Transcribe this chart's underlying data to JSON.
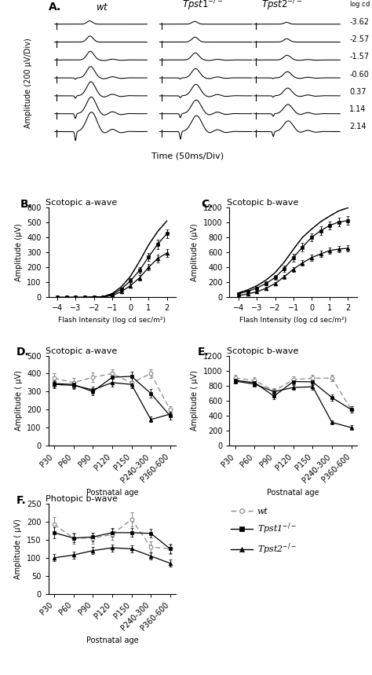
{
  "panel_A": {
    "intensity_labels": [
      "-3.62",
      "-2.57",
      "-1.57",
      "-0.60",
      "0.37",
      "1.14",
      "2.14"
    ],
    "xlabel": "Time (50ms/Div)",
    "ylabel": "Amplitude (200 μV/Div)"
  },
  "panel_B": {
    "label": "B.",
    "title": "Scotopic a-wave",
    "xlabel": "Flash Intensity (log cd sec/m²)",
    "ylabel": "Amplitude (μV)",
    "ylim": [
      0,
      600
    ],
    "xlim": [
      -4.5,
      2.5
    ],
    "xticks": [
      -4,
      -3,
      -2,
      -1,
      0,
      1,
      2
    ],
    "wt_x": [
      -4,
      -3.5,
      -3,
      -2.5,
      -2,
      -1.5,
      -1,
      -0.5,
      0,
      0.5,
      1,
      1.5,
      2
    ],
    "wt_y": [
      0,
      0,
      0,
      0,
      2,
      5,
      25,
      70,
      140,
      240,
      350,
      440,
      510
    ],
    "tpst1_x": [
      -4,
      -3.5,
      -3,
      -2.5,
      -2,
      -1.5,
      -1,
      -0.5,
      0,
      0.5,
      1,
      1.5,
      2
    ],
    "tpst1_y": [
      0,
      0,
      0,
      0,
      2,
      4,
      18,
      55,
      110,
      180,
      270,
      355,
      425
    ],
    "tpst1_err": [
      0,
      0,
      0,
      0,
      1,
      2,
      8,
      12,
      18,
      22,
      28,
      32,
      30
    ],
    "tpst2_x": [
      -4,
      -3.5,
      -3,
      -2.5,
      -2,
      -1.5,
      -1,
      -0.5,
      0,
      0.5,
      1,
      1.5,
      2
    ],
    "tpst2_y": [
      0,
      0,
      0,
      0,
      1,
      3,
      12,
      38,
      78,
      130,
      200,
      260,
      295
    ],
    "tpst2_err": [
      0,
      0,
      0,
      0,
      1,
      2,
      6,
      10,
      14,
      18,
      22,
      25,
      28
    ]
  },
  "panel_C": {
    "label": "C.",
    "title": "Scotopic b-wave",
    "xlabel": "Flash Intensity (log cd sec/m²)",
    "ylabel": "Amplitude (μV)",
    "ylim": [
      0,
      1200
    ],
    "xlim": [
      -4.5,
      2.5
    ],
    "xticks": [
      -4,
      -3,
      -2,
      -1,
      0,
      1,
      2
    ],
    "wt_x": [
      -4,
      -3.5,
      -3,
      -2.5,
      -2,
      -1.5,
      -1,
      -0.5,
      0,
      0.5,
      1,
      1.5,
      2
    ],
    "wt_y": [
      60,
      100,
      155,
      230,
      330,
      470,
      640,
      800,
      910,
      1010,
      1085,
      1155,
      1195
    ],
    "tpst1_x": [
      -4,
      -3.5,
      -3,
      -2.5,
      -2,
      -1.5,
      -1,
      -0.5,
      0,
      0.5,
      1,
      1.5,
      2
    ],
    "tpst1_y": [
      50,
      80,
      125,
      185,
      265,
      385,
      530,
      670,
      800,
      890,
      960,
      1005,
      1025
    ],
    "tpst1_err": [
      10,
      15,
      20,
      25,
      30,
      40,
      50,
      55,
      55,
      55,
      55,
      55,
      55
    ],
    "tpst2_x": [
      -4,
      -3.5,
      -3,
      -2.5,
      -2,
      -1.5,
      -1,
      -0.5,
      0,
      0.5,
      1,
      1.5,
      2
    ],
    "tpst2_y": [
      25,
      45,
      75,
      120,
      185,
      275,
      375,
      460,
      530,
      580,
      625,
      645,
      655
    ],
    "tpst2_err": [
      8,
      10,
      14,
      18,
      22,
      28,
      32,
      38,
      40,
      42,
      42,
      42,
      42
    ]
  },
  "panel_D": {
    "label": "D.",
    "title": "Scotopic a-wave",
    "xlabel": "Postnatal age",
    "ylabel": "Amplitude ( μV)",
    "ylim": [
      0,
      500
    ],
    "yticks": [
      0,
      100,
      200,
      300,
      400,
      500
    ],
    "xtick_labels": [
      "P30",
      "P60",
      "P90",
      "P120",
      "P150",
      "P240-300",
      "P360-600"
    ],
    "wt_y": [
      375,
      350,
      380,
      400,
      350,
      400,
      200
    ],
    "wt_err": [
      25,
      25,
      25,
      25,
      25,
      25,
      20
    ],
    "tpst1_y": [
      345,
      340,
      300,
      380,
      385,
      290,
      165
    ],
    "tpst1_err": [
      20,
      20,
      20,
      25,
      25,
      25,
      20
    ],
    "tpst2_y": [
      340,
      335,
      310,
      350,
      340,
      145,
      175
    ],
    "tpst2_err": [
      20,
      20,
      20,
      20,
      20,
      15,
      15
    ]
  },
  "panel_E": {
    "label": "E.",
    "title": "Scotopic b-wave",
    "xlabel": "Postnatal age",
    "ylabel": "Amplitude ( μV)",
    "ylim": [
      0,
      1200
    ],
    "yticks": [
      0,
      200,
      400,
      600,
      800,
      1000,
      1200
    ],
    "xtick_labels": [
      "P30",
      "P60",
      "P90",
      "P120",
      "P150",
      "P240-300",
      "P360-600"
    ],
    "wt_y": [
      900,
      870,
      730,
      880,
      900,
      900,
      480
    ],
    "wt_err": [
      40,
      40,
      40,
      40,
      40,
      40,
      40
    ],
    "tpst1_y": [
      870,
      840,
      660,
      855,
      850,
      640,
      480
    ],
    "tpst1_err": [
      40,
      40,
      40,
      40,
      40,
      40,
      40
    ],
    "tpst2_y": [
      860,
      820,
      720,
      775,
      785,
      310,
      240
    ],
    "tpst2_err": [
      35,
      35,
      35,
      35,
      35,
      30,
      30
    ]
  },
  "panel_F": {
    "label": "F.",
    "title": "Photopic b-wave",
    "xlabel": "Postnatal age",
    "ylabel": "Amplitude ( μV)",
    "ylim": [
      0,
      250
    ],
    "yticks": [
      0,
      50,
      100,
      150,
      200,
      250
    ],
    "xtick_labels": [
      "P30",
      "P60",
      "P90",
      "P120",
      "P150",
      "P240-300",
      "P360-600"
    ],
    "wt_y": [
      193,
      155,
      155,
      165,
      207,
      130,
      125
    ],
    "wt_err": [
      20,
      15,
      15,
      15,
      20,
      15,
      15
    ],
    "tpst1_y": [
      170,
      155,
      158,
      170,
      170,
      168,
      125
    ],
    "tpst1_err": [
      15,
      12,
      12,
      12,
      12,
      12,
      12
    ],
    "tpst2_y": [
      100,
      108,
      120,
      128,
      125,
      105,
      85
    ],
    "tpst2_err": [
      10,
      10,
      10,
      10,
      10,
      10,
      10
    ]
  },
  "legend": {
    "wt_label": "wt",
    "tpst1_label": "Tpst1$^{-/-}$",
    "tpst2_label": "Tpst2$^{-/-}$"
  }
}
